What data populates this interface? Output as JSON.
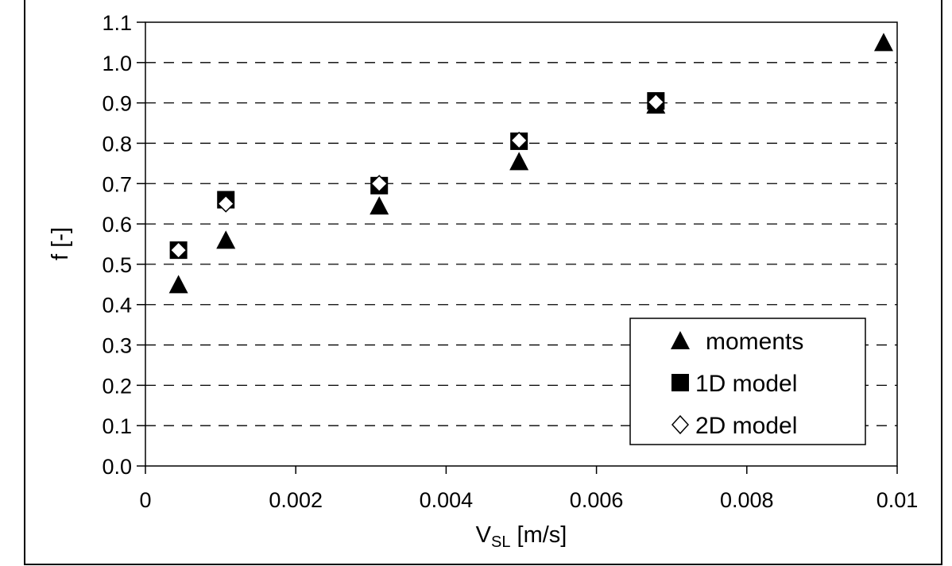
{
  "chart_data": {
    "type": "scatter",
    "title": "",
    "xlabel": "V",
    "xlabel_sub": "SL",
    "xlabel_unit": " [m/s]",
    "ylabel": "f [-]",
    "xlim": [
      0,
      0.01
    ],
    "ylim": [
      0,
      1.1
    ],
    "xticks": [
      "0",
      "0.002",
      "0.004",
      "0.006",
      "0.008",
      "0.01"
    ],
    "xtick_values": [
      0,
      0.002,
      0.004,
      0.006,
      0.008,
      0.01
    ],
    "yticks": [
      "0.0",
      "0.1",
      "0.2",
      "0.3",
      "0.4",
      "0.5",
      "0.6",
      "0.7",
      "0.8",
      "0.9",
      "1.0",
      "1.1"
    ],
    "ytick_values": [
      0,
      0.1,
      0.2,
      0.3,
      0.4,
      0.5,
      0.6,
      0.7,
      0.8,
      0.9,
      1.0,
      1.1
    ],
    "grid": "horizontal dashed",
    "legend_position": "bottom-right",
    "series": [
      {
        "name": "moments",
        "marker": "triangle",
        "x": [
          0.00044,
          0.00107,
          0.00311,
          0.00497,
          0.00679,
          0.00982
        ],
        "y": [
          0.45,
          0.56,
          0.645,
          0.755,
          0.895,
          1.05
        ]
      },
      {
        "name": "1D model",
        "marker": "square",
        "x": [
          0.00044,
          0.00107,
          0.00311,
          0.00497,
          0.00679
        ],
        "y": [
          0.535,
          0.66,
          0.695,
          0.805,
          0.905
        ]
      },
      {
        "name": "2D model",
        "marker": "diamond",
        "x": [
          0.00044,
          0.00107,
          0.00311,
          0.00497,
          0.00679
        ],
        "y": [
          0.535,
          0.65,
          0.7,
          0.807,
          0.902
        ]
      }
    ]
  }
}
